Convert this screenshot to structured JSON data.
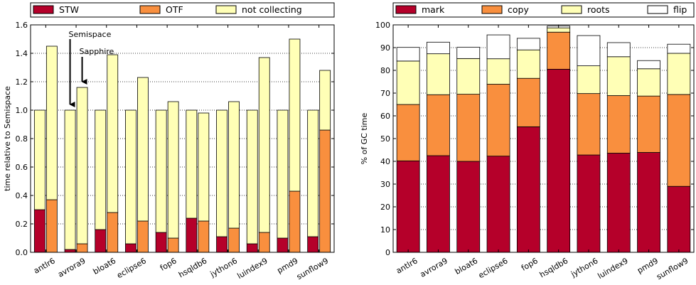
{
  "colors": {
    "stw": "#b5002a",
    "otf": "#f98f3e",
    "not_collecting": "#ffffb6",
    "mark": "#b5002a",
    "copy": "#f98f3e",
    "roots": "#ffffb6",
    "flip": "#ffffff"
  },
  "chart_data": [
    {
      "type": "bar",
      "stacked": true,
      "categories": [
        "antlr6",
        "avrora9",
        "bloat6",
        "eclipse6",
        "fop6",
        "hsqldb6",
        "jython6",
        "luindex9",
        "pmd9",
        "sunflow9"
      ],
      "bar_pair_labels": [
        "Semispace",
        "Sapphire"
      ],
      "title": "",
      "xlabel": "",
      "ylabel": "time relative to Semispace",
      "ylim": [
        0,
        1.6
      ],
      "yticks": [
        "0.0",
        "0.2",
        "0.4",
        "0.6",
        "0.8",
        "1.0",
        "1.2",
        "1.4",
        "1.6"
      ],
      "grid": "horizontal-dotted",
      "legend": "top",
      "legend_labels": [
        "STW",
        "OTF",
        "not collecting"
      ],
      "series": [
        {
          "name": "STW",
          "semispace": [
            0.3,
            0.02,
            0.16,
            0.06,
            0.14,
            0.24,
            0.11,
            0.06,
            0.1,
            0.11
          ],
          "sapphire": [
            0.0,
            0.0,
            0.0,
            0.0,
            0.0,
            0.0,
            0.0,
            0.0,
            0.0,
            0.0
          ]
        },
        {
          "name": "OTF",
          "semispace": [
            0.0,
            0.0,
            0.0,
            0.0,
            0.0,
            0.0,
            0.0,
            0.0,
            0.0,
            0.0
          ],
          "sapphire": [
            0.37,
            0.06,
            0.28,
            0.22,
            0.1,
            0.22,
            0.17,
            0.14,
            0.43,
            0.86
          ]
        },
        {
          "name": "not collecting",
          "semispace": [
            0.7,
            0.98,
            0.84,
            0.94,
            0.86,
            0.76,
            0.89,
            0.94,
            0.9,
            0.89
          ],
          "sapphire": [
            1.08,
            1.1,
            1.11,
            1.01,
            0.96,
            0.76,
            0.89,
            1.23,
            1.07,
            0.42
          ]
        }
      ],
      "annotations": [
        {
          "text": "Semispace",
          "category": "avrora9",
          "bar": "semispace"
        },
        {
          "text": "Sapphire",
          "category": "avrora9",
          "bar": "sapphire"
        }
      ]
    },
    {
      "type": "bar",
      "stacked": true,
      "categories": [
        "antlr6",
        "avrora9",
        "bloat6",
        "eclipse6",
        "fop6",
        "hsqldb6",
        "jython6",
        "luindex9",
        "pmd9",
        "sunflow9"
      ],
      "title": "",
      "xlabel": "",
      "ylabel": "% of GC time",
      "ylim": [
        0,
        100
      ],
      "yticks": [
        "0",
        "10",
        "20",
        "30",
        "40",
        "50",
        "60",
        "70",
        "80",
        "90",
        "100"
      ],
      "grid": "horizontal-dotted",
      "legend": "top",
      "legend_labels": [
        "mark",
        "copy",
        "roots",
        "flip"
      ],
      "series": [
        {
          "name": "mark",
          "values": [
            40.2,
            42.5,
            40.0,
            42.3,
            55.2,
            80.5,
            42.8,
            43.6,
            43.9,
            29.0
          ]
        },
        {
          "name": "copy",
          "values": [
            24.8,
            26.8,
            29.5,
            31.6,
            21.3,
            16.3,
            27.0,
            25.3,
            24.8,
            40.4
          ]
        },
        {
          "name": "roots",
          "values": [
            19.1,
            18.0,
            15.7,
            11.2,
            12.5,
            1.9,
            12.2,
            17.1,
            12.0,
            18.1
          ]
        },
        {
          "name": "flip",
          "values": [
            6.0,
            5.1,
            5.0,
            10.5,
            5.1,
            0.8,
            13.3,
            6.2,
            3.6,
            4.0
          ]
        }
      ]
    }
  ]
}
